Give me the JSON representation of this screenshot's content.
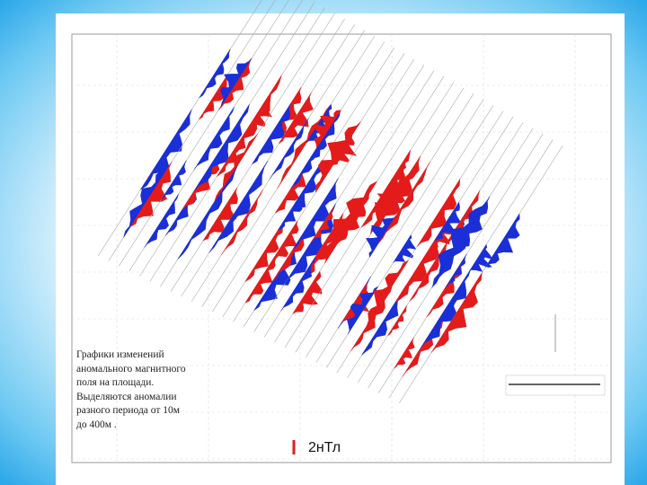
{
  "caption": {
    "lines": [
      "Графики изменений",
      "аномального магнитного",
      "поля на площади.",
      "Выделяются аномалии",
      "разного периода от  10м",
      "до 400м ."
    ]
  },
  "legend": {
    "label": "2нТл"
  }
}
